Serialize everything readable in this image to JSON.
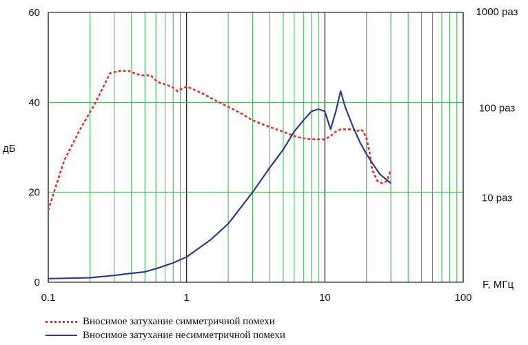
{
  "chart_data": {
    "type": "line",
    "title": "",
    "xlabel": "F, МГц",
    "ylabel": "дБ",
    "x_scale": "log",
    "xlim": [
      0.1,
      100
    ],
    "ylim": [
      0,
      60
    ],
    "x_ticks": [
      {
        "value": 0.1,
        "label": "0.1"
      },
      {
        "value": 1,
        "label": "1"
      },
      {
        "value": 10,
        "label": "10"
      },
      {
        "value": 100,
        "label": "100"
      }
    ],
    "y_ticks": [
      {
        "value": 0,
        "label": "0"
      },
      {
        "value": 20,
        "label": "20"
      },
      {
        "value": 40,
        "label": "40"
      },
      {
        "value": 60,
        "label": "60"
      }
    ],
    "y2_ticks": [
      {
        "value": 20,
        "label": "10 раз"
      },
      {
        "value": 40,
        "label": "100 раз"
      },
      {
        "value": 60,
        "label": "1000 раз"
      }
    ],
    "grid": true,
    "legend_position": "bottom-left",
    "series": [
      {
        "name": "Вносимое затухание симметричной помехи",
        "color": "#e0302a",
        "style": "dotted",
        "x": [
          0.1,
          0.13,
          0.17,
          0.22,
          0.28,
          0.33,
          0.38,
          0.42,
          0.47,
          0.55,
          0.62,
          0.7,
          0.78,
          0.86,
          0.92,
          1.0,
          1.1,
          1.3,
          1.6,
          2.0,
          2.5,
          3.0,
          4.0,
          5.0,
          6.0,
          7.0,
          8.0,
          9.0,
          10.0,
          11.0,
          12.0,
          13.0,
          14.0,
          15.0,
          16.0,
          17.0,
          18.0,
          19.0,
          20.0,
          21.0,
          22.0,
          24.0,
          26.0,
          28.0,
          30.0
        ],
        "values": [
          16,
          27,
          34,
          40,
          46.5,
          47,
          47,
          46.5,
          46,
          46,
          44.5,
          44,
          43.5,
          42.5,
          43,
          43.5,
          43,
          42,
          40.5,
          39,
          37.5,
          36,
          34.5,
          33.5,
          32.5,
          32,
          31.8,
          31.8,
          31.8,
          32.5,
          33.5,
          34,
          34,
          34,
          34,
          33.5,
          34,
          33.5,
          32,
          29,
          25,
          22.5,
          22,
          22.5,
          25
        ]
      },
      {
        "name": "Вносимое затухание несимметричной помехи",
        "color": "#2b3a8c",
        "style": "solid",
        "x": [
          0.1,
          0.2,
          0.3,
          0.4,
          0.5,
          0.6,
          0.7,
          0.8,
          0.9,
          1.0,
          1.5,
          2.0,
          3.0,
          4.0,
          5.0,
          6.0,
          7.0,
          8.0,
          9.0,
          10.0,
          11.0,
          12.0,
          13.0,
          14.0,
          16.0,
          18.0,
          20.0,
          22.0,
          25.0,
          30.0
        ],
        "values": [
          0.8,
          1.0,
          1.5,
          2.0,
          2.3,
          3.0,
          3.7,
          4.3,
          5.0,
          5.6,
          9.5,
          13.0,
          20.0,
          25.5,
          29.5,
          33.5,
          36.0,
          38.0,
          38.5,
          38.0,
          34.0,
          38.0,
          42.5,
          39.0,
          34.5,
          31.0,
          28.5,
          26.5,
          24.0,
          22.0
        ]
      }
    ]
  }
}
